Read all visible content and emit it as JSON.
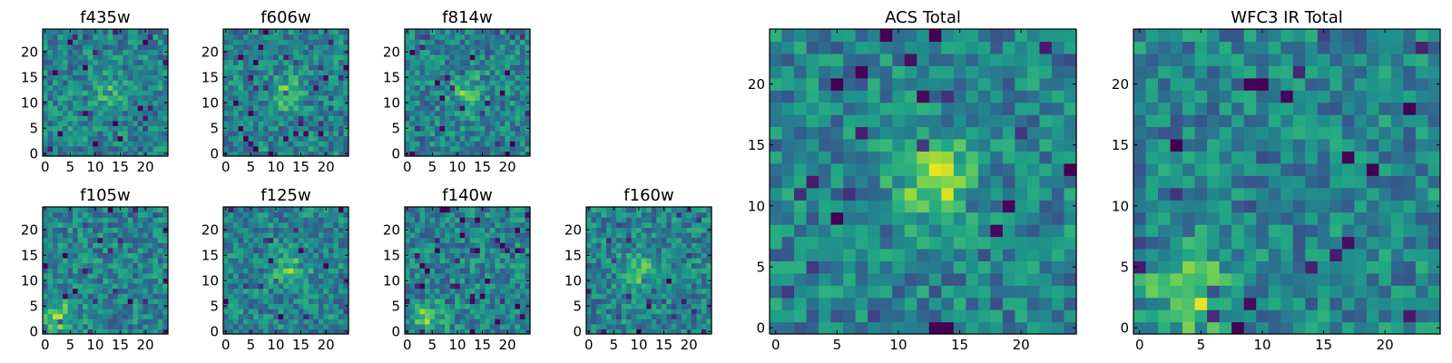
{
  "figure": {
    "description_colormap": "viridis",
    "colors": {
      "low": "#440154",
      "mid": "#21918c",
      "high": "#fde725",
      "frame": "#000000"
    }
  },
  "chart_data": [
    {
      "type": "heatmap",
      "title": "f435w",
      "xticks": [
        "0",
        "5",
        "10",
        "15",
        "20"
      ],
      "yticks": [
        "0",
        "5",
        "10",
        "15",
        "20"
      ],
      "xlim": [
        0,
        25
      ],
      "ylim": [
        0,
        25
      ],
      "grid_size": [
        25,
        25
      ],
      "seed": 11,
      "peak": {
        "x": 13,
        "y": 12,
        "strength": 0.18
      }
    },
    {
      "type": "heatmap",
      "title": "f606w",
      "xticks": [
        "0",
        "5",
        "10",
        "15",
        "20"
      ],
      "yticks": [
        "0",
        "5",
        "10",
        "15",
        "20"
      ],
      "xlim": [
        0,
        25
      ],
      "ylim": [
        0,
        25
      ],
      "grid_size": [
        25,
        25
      ],
      "seed": 23,
      "peak": {
        "x": 12,
        "y": 12,
        "strength": 0.25
      }
    },
    {
      "type": "heatmap",
      "title": "f814w",
      "xticks": [
        "0",
        "5",
        "10",
        "15",
        "20"
      ],
      "yticks": [
        "0",
        "5",
        "10",
        "15",
        "20"
      ],
      "xlim": [
        0,
        25
      ],
      "ylim": [
        0,
        25
      ],
      "grid_size": [
        25,
        25
      ],
      "seed": 37,
      "peak": {
        "x": 12,
        "y": 12,
        "strength": 0.25
      }
    },
    {
      "type": "heatmap",
      "title": "f105w",
      "xticks": [
        "0",
        "5",
        "10",
        "15",
        "20"
      ],
      "yticks": [
        "0",
        "5",
        "10",
        "15",
        "20"
      ],
      "xlim": [
        0,
        25
      ],
      "ylim": [
        0,
        25
      ],
      "grid_size": [
        25,
        25
      ],
      "seed": 41,
      "peak": {
        "x": 3,
        "y": 3,
        "strength": 0.3
      }
    },
    {
      "type": "heatmap",
      "title": "f125w",
      "xticks": [
        "0",
        "5",
        "10",
        "15",
        "20"
      ],
      "yticks": [
        "0",
        "5",
        "10",
        "15",
        "20"
      ],
      "xlim": [
        0,
        25
      ],
      "ylim": [
        0,
        25
      ],
      "grid_size": [
        25,
        25
      ],
      "seed": 53,
      "peak": {
        "x": 13,
        "y": 12,
        "strength": 0.28
      }
    },
    {
      "type": "heatmap",
      "title": "f140w",
      "xticks": [
        "0",
        "5",
        "10",
        "15",
        "20"
      ],
      "yticks": [
        "0",
        "5",
        "10",
        "15",
        "20"
      ],
      "xlim": [
        0,
        25
      ],
      "ylim": [
        0,
        25
      ],
      "grid_size": [
        25,
        25
      ],
      "seed": 67,
      "peak": {
        "x": 4,
        "y": 3,
        "strength": 0.28
      }
    },
    {
      "type": "heatmap",
      "title": "f160w",
      "xticks": [
        "0",
        "5",
        "10",
        "15",
        "20"
      ],
      "yticks": [
        "0",
        "5",
        "10",
        "15",
        "20"
      ],
      "xlim": [
        0,
        25
      ],
      "ylim": [
        0,
        25
      ],
      "grid_size": [
        25,
        25
      ],
      "seed": 79,
      "peak": {
        "x": 10,
        "y": 12,
        "strength": 0.3
      }
    },
    {
      "type": "heatmap",
      "title": "ACS Total",
      "xticks": [
        "0",
        "5",
        "10",
        "15",
        "20"
      ],
      "yticks": [
        "0",
        "5",
        "10",
        "15",
        "20"
      ],
      "xlim": [
        0,
        25
      ],
      "ylim": [
        0,
        25
      ],
      "grid_size": [
        25,
        25
      ],
      "seed": 97,
      "peak": {
        "x": 13,
        "y": 12,
        "strength": 0.4
      }
    },
    {
      "type": "heatmap",
      "title": "WFC3 IR Total",
      "xticks": [
        "0",
        "5",
        "10",
        "15",
        "20"
      ],
      "yticks": [
        "0",
        "5",
        "10",
        "15",
        "20"
      ],
      "xlim": [
        0,
        25
      ],
      "ylim": [
        0,
        25
      ],
      "grid_size": [
        25,
        25
      ],
      "seed": 113,
      "peak": {
        "x": 4,
        "y": 3,
        "strength": 0.4
      }
    }
  ]
}
